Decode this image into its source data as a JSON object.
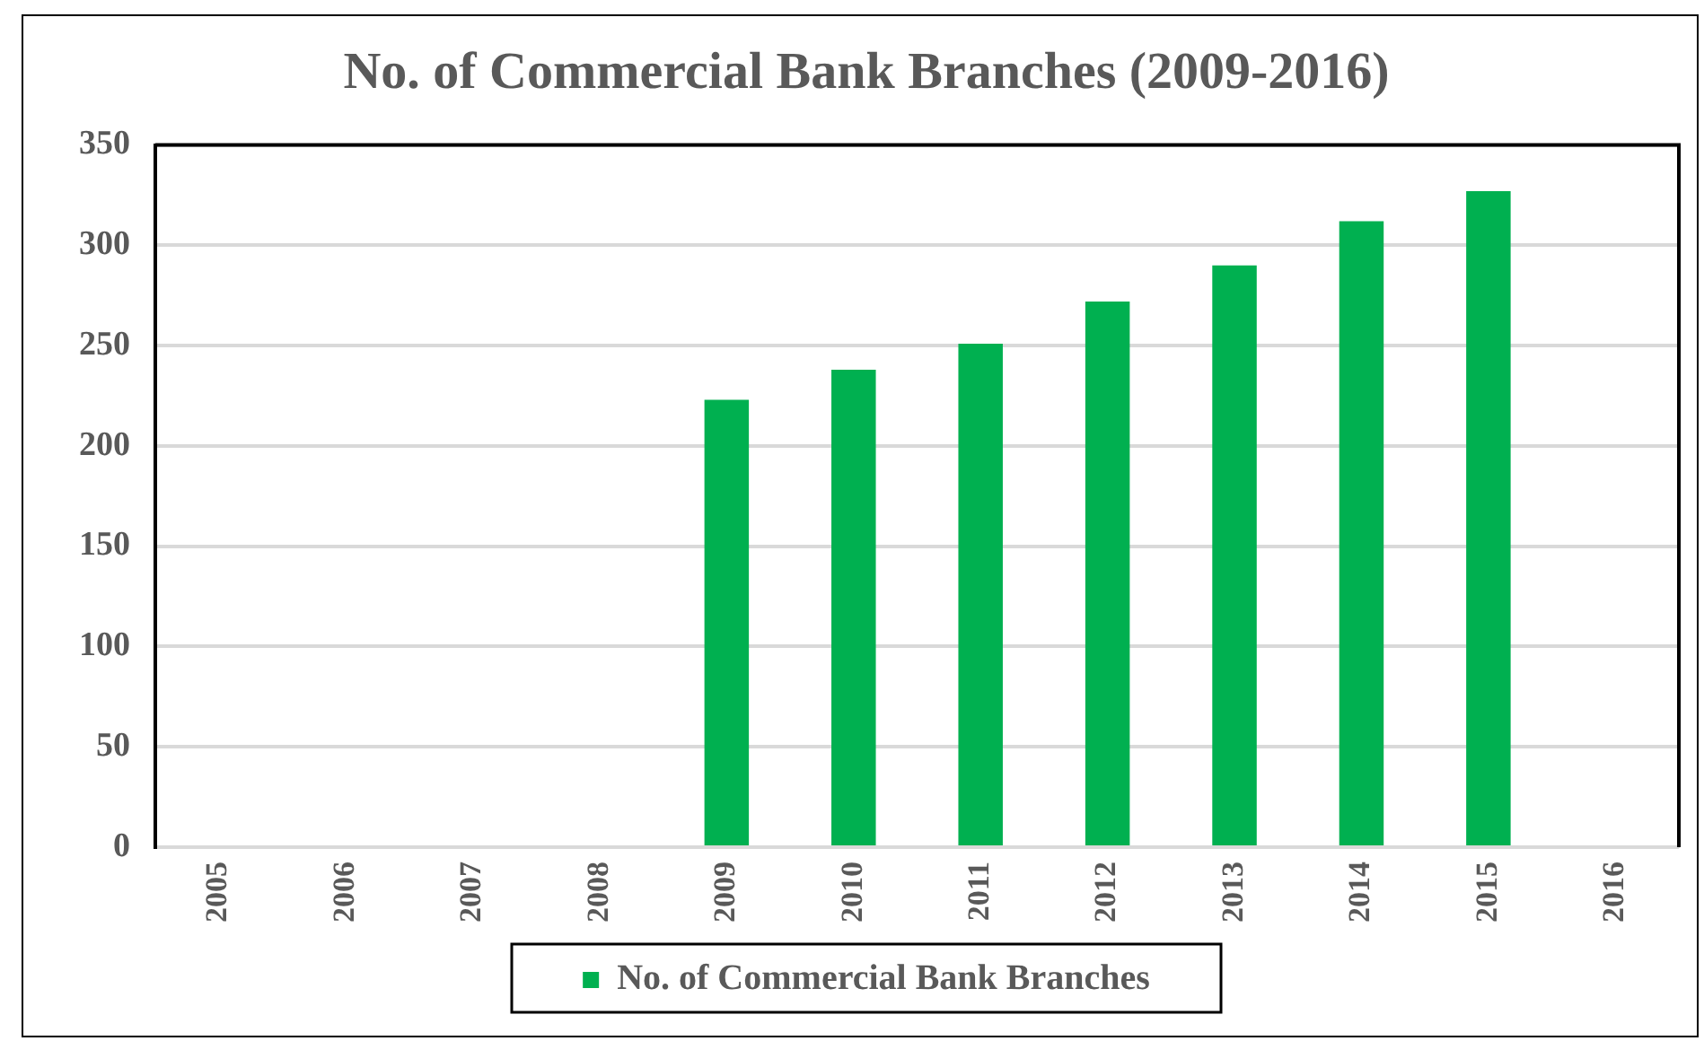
{
  "chart_data": {
    "type": "bar",
    "title": "No. of Commercial Bank Branches (2009-2016)",
    "categories": [
      "2005",
      "2006",
      "2007",
      "2008",
      "2009",
      "2010",
      "2011",
      "2012",
      "2013",
      "2014",
      "2015",
      "2016"
    ],
    "series": [
      {
        "name": "No. of Commercial Bank Branches",
        "color": "#00b050",
        "values": [
          null,
          null,
          null,
          null,
          223,
          238,
          251,
          272,
          290,
          312,
          327,
          null
        ]
      }
    ],
    "ylim": [
      0,
      350
    ],
    "yticks": [
      0,
      50,
      100,
      150,
      200,
      250,
      300,
      350
    ],
    "grid": "y",
    "legend": "bottom"
  }
}
